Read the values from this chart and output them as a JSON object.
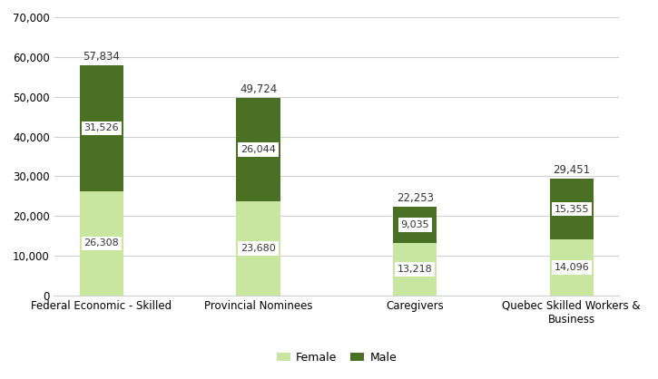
{
  "categories": [
    "Federal Economic - Skilled",
    "Provincial Nominees",
    "Caregivers",
    "Quebec Skilled Workers &\nBusiness"
  ],
  "female_values": [
    26308,
    23680,
    13218,
    14096
  ],
  "male_values": [
    31526,
    26044,
    9035,
    15355
  ],
  "totals": [
    57834,
    49724,
    22253,
    29451
  ],
  "female_color": "#c8e6a0",
  "male_color": "#4a7023",
  "ylim": [
    0,
    70000
  ],
  "yticks": [
    0,
    10000,
    20000,
    30000,
    40000,
    50000,
    60000,
    70000
  ],
  "legend_labels": [
    "Female",
    "Male"
  ],
  "background_color": "#ffffff",
  "grid_color": "#d0d0d0",
  "bar_width": 0.28
}
